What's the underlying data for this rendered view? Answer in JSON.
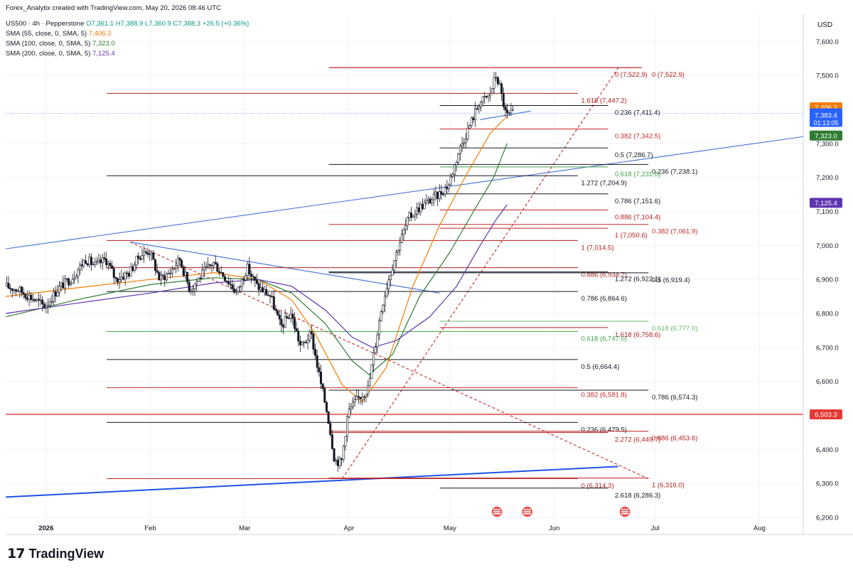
{
  "header": {
    "credit": "Forex_Analytix created with TradingView.com, May 20, 2026 08:46 UTC",
    "symbol": "US500 · 4h · Pepperstone",
    "ohlc": "O7,361.1 H7,388.9 L7,360.9 C7,388.3 +26.5 (+0.36%)",
    "indicators": [
      {
        "label": "SMA (55, close, 0, SMA, 5)",
        "value": "7,406.3"
      },
      {
        "label": "SMA (100, close, 0, SMA, 5)",
        "value": "7,323.0"
      },
      {
        "label": "SMA (200, close, 0, SMA, 5)",
        "value": "7,125.4"
      }
    ]
  },
  "brand": {
    "mark": "17",
    "name": "TradingView"
  },
  "colors": {
    "candle": "#131722",
    "sma55": "#f57c00",
    "sma100": "#2e7d32",
    "sma200": "#5e35b1",
    "trendline": "#3d6fd6",
    "fib_red": "#b71c1c",
    "fib_green": "#66bb6a",
    "fib_black": "#131722",
    "level_red": "#e53935"
  },
  "chart_data": {
    "type": "candlestick",
    "timeframe": "4h",
    "currency": "USD",
    "ylim": [
      6150,
      7680
    ],
    "xlim": [
      "2025-12-20",
      "2026-08-14"
    ],
    "yticks": [
      "6,200.0",
      "6,300.0",
      "6,400.0",
      "6,500.0",
      "6,600.0",
      "6,700.0",
      "6,800.0",
      "6,900.0",
      "7,000.0",
      "7,100.0",
      "7,200.0",
      "7,300.0",
      "7,400.0",
      "7,500.0",
      "7,600.0"
    ],
    "xticks": [
      {
        "date": "2026-01-01",
        "label": "2026"
      },
      {
        "date": "2026-02-01",
        "label": "Feb"
      },
      {
        "date": "2026-03-01",
        "label": "Mar"
      },
      {
        "date": "2026-04-01",
        "label": "Apr"
      },
      {
        "date": "2026-05-01",
        "label": "May"
      },
      {
        "date": "2026-06-01",
        "label": "Jun"
      },
      {
        "date": "2026-07-01",
        "label": "Jul"
      },
      {
        "date": "2026-08-01",
        "label": "Aug"
      }
    ],
    "price_path": [
      [
        "2025-12-20",
        6880
      ],
      [
        "2025-12-24",
        6870
      ],
      [
        "2025-12-29",
        6840
      ],
      [
        "2026-01-01",
        6820
      ],
      [
        "2026-01-05",
        6875
      ],
      [
        "2026-01-09",
        6905
      ],
      [
        "2026-01-13",
        6960
      ],
      [
        "2026-01-16",
        6940
      ],
      [
        "2026-01-19",
        6960
      ],
      [
        "2026-01-22",
        6900
      ],
      [
        "2026-01-26",
        6920
      ],
      [
        "2026-01-29",
        6970
      ],
      [
        "2026-02-01",
        6985
      ],
      [
        "2026-02-04",
        6900
      ],
      [
        "2026-02-07",
        6920
      ],
      [
        "2026-02-10",
        6960
      ],
      [
        "2026-02-13",
        6870
      ],
      [
        "2026-02-17",
        6920
      ],
      [
        "2026-02-20",
        6950
      ],
      [
        "2026-02-24",
        6900
      ],
      [
        "2026-02-27",
        6860
      ],
      [
        "2026-03-02",
        6935
      ],
      [
        "2026-03-05",
        6880
      ],
      [
        "2026-03-09",
        6850
      ],
      [
        "2026-03-12",
        6760
      ],
      [
        "2026-03-15",
        6800
      ],
      [
        "2026-03-18",
        6700
      ],
      [
        "2026-03-21",
        6740
      ],
      [
        "2026-03-24",
        6590
      ],
      [
        "2026-03-26",
        6500
      ],
      [
        "2026-03-28",
        6370
      ],
      [
        "2026-03-30",
        6360
      ],
      [
        "2026-04-01",
        6510
      ],
      [
        "2026-04-04",
        6550
      ],
      [
        "2026-04-07",
        6580
      ],
      [
        "2026-04-09",
        6700
      ],
      [
        "2026-04-11",
        6820
      ],
      [
        "2026-04-13",
        6900
      ],
      [
        "2026-04-16",
        7000
      ],
      [
        "2026-04-19",
        7080
      ],
      [
        "2026-04-22",
        7110
      ],
      [
        "2026-04-25",
        7130
      ],
      [
        "2026-04-28",
        7150
      ],
      [
        "2026-05-01",
        7180
      ],
      [
        "2026-05-04",
        7280
      ],
      [
        "2026-05-07",
        7350
      ],
      [
        "2026-05-10",
        7420
      ],
      [
        "2026-05-13",
        7440
      ],
      [
        "2026-05-15",
        7500
      ],
      [
        "2026-05-16",
        7470
      ],
      [
        "2026-05-18",
        7380
      ],
      [
        "2026-05-20",
        7388
      ]
    ],
    "candle_samples": 270,
    "last_price": "7,388.3",
    "countdown": "01:13:05",
    "series": [
      {
        "name": "SMA (55, close, 0, SMA, 5)",
        "color": "#f57c00",
        "last": "7,406.3",
        "path": [
          [
            "2025-12-20",
            6850
          ],
          [
            "2026-01-10",
            6875
          ],
          [
            "2026-02-01",
            6900
          ],
          [
            "2026-02-20",
            6920
          ],
          [
            "2026-03-05",
            6900
          ],
          [
            "2026-03-15",
            6840
          ],
          [
            "2026-03-22",
            6740
          ],
          [
            "2026-03-30",
            6590
          ],
          [
            "2026-04-05",
            6540
          ],
          [
            "2026-04-12",
            6640
          ],
          [
            "2026-04-20",
            6880
          ],
          [
            "2026-04-28",
            7060
          ],
          [
            "2026-05-06",
            7210
          ],
          [
            "2026-05-13",
            7330
          ],
          [
            "2026-05-18",
            7380
          ]
        ]
      },
      {
        "name": "SMA (100, close, 0, SMA, 5)",
        "color": "#2e7d32",
        "last": "7,323.0",
        "path": [
          [
            "2025-12-20",
            6790
          ],
          [
            "2026-01-10",
            6840
          ],
          [
            "2026-02-01",
            6885
          ],
          [
            "2026-02-20",
            6905
          ],
          [
            "2026-03-05",
            6900
          ],
          [
            "2026-03-15",
            6860
          ],
          [
            "2026-03-25",
            6770
          ],
          [
            "2026-04-02",
            6660
          ],
          [
            "2026-04-07",
            6620
          ],
          [
            "2026-04-14",
            6680
          ],
          [
            "2026-04-22",
            6850
          ],
          [
            "2026-05-01",
            6980
          ],
          [
            "2026-05-08",
            7100
          ],
          [
            "2026-05-14",
            7200
          ],
          [
            "2026-05-18",
            7300
          ]
        ]
      },
      {
        "name": "SMA (200, close, 0, SMA, 5)",
        "color": "#5e35b1",
        "last": "7,125.4",
        "path": [
          [
            "2025-12-20",
            6800
          ],
          [
            "2026-01-10",
            6830
          ],
          [
            "2026-02-01",
            6860
          ],
          [
            "2026-02-20",
            6890
          ],
          [
            "2026-03-05",
            6900
          ],
          [
            "2026-03-15",
            6880
          ],
          [
            "2026-03-25",
            6810
          ],
          [
            "2026-04-02",
            6730
          ],
          [
            "2026-04-08",
            6700
          ],
          [
            "2026-04-15",
            6720
          ],
          [
            "2026-04-25",
            6790
          ],
          [
            "2026-05-03",
            6880
          ],
          [
            "2026-05-10",
            7000
          ],
          [
            "2026-05-15",
            7080
          ],
          [
            "2026-05-18",
            7120
          ]
        ]
      }
    ],
    "trendlines": [
      {
        "style": "solid",
        "color": "#3d6fd6",
        "points": [
          [
            "2025-12-20",
            6990
          ],
          [
            "2026-08-14",
            7320
          ]
        ]
      },
      {
        "style": "solid",
        "color": "#3d6fd6",
        "points": [
          [
            "2026-01-26",
            7010
          ],
          [
            "2026-04-28",
            6860
          ]
        ]
      },
      {
        "style": "solid",
        "color": "#1e53e5",
        "points": [
          [
            "2025-12-20",
            6260
          ],
          [
            "2026-06-20",
            6350
          ]
        ]
      },
      {
        "style": "solid",
        "color": "#3d6fd6",
        "points": [
          [
            "2026-05-10",
            7370
          ],
          [
            "2026-05-25",
            7395
          ]
        ]
      },
      {
        "style": "dashed",
        "color": "#c62828",
        "points": [
          [
            "2026-03-30",
            6314
          ],
          [
            "2026-06-20",
            7522
          ]
        ]
      },
      {
        "style": "dashed",
        "color": "#c62828",
        "points": [
          [
            "2026-01-26",
            7010
          ],
          [
            "2026-06-29",
            6314
          ]
        ]
      }
    ],
    "fib_levels": [
      {
        "price": 7522.9,
        "from": "2026-03-26",
        "to": "2026-06-27",
        "color": "#b71c1c",
        "label": "0 (7,522.9)",
        "label_at": "2026-06-19"
      },
      {
        "price": 7522.9,
        "from": "2026-03-26",
        "to": "2026-06-27",
        "color": "#b71c1c",
        "label": "0 (7,522.9)",
        "label_at": "2026-06-30"
      },
      {
        "price": 7447.2,
        "from": "2026-01-19",
        "to": "2026-06-08",
        "color": "#b71c1c",
        "label": "1.618 (7,447.2)",
        "label_at": "2026-06-09"
      },
      {
        "price": 7411.4,
        "from": "2026-04-28",
        "to": "2026-06-17",
        "color": "#131722",
        "label": "0.236 (7,411.4)",
        "label_at": "2026-06-19"
      },
      {
        "price": 7342.5,
        "from": "2026-04-28",
        "to": "2026-06-17",
        "color": "#c62828",
        "label": "0.382 (7,342.5)",
        "label_at": "2026-06-19"
      },
      {
        "price": 7286.7,
        "from": "2026-04-28",
        "to": "2026-06-17",
        "color": "#131722",
        "label": "0.5 (7,286.7)",
        "label_at": "2026-06-19"
      },
      {
        "price": 7238.1,
        "from": "2026-03-26",
        "to": "2026-06-29",
        "color": "#131722",
        "label": "0.236 (7,238.1)",
        "label_at": "2026-06-30"
      },
      {
        "price": 7231.0,
        "from": "2026-04-28",
        "to": "2026-06-17",
        "color": "#43a047",
        "label": "0.618 (7,231.0)",
        "label_at": "2026-06-19"
      },
      {
        "price": 7204.9,
        "from": "2026-01-19",
        "to": "2026-06-08",
        "color": "#131722",
        "label": "1.272 (7,204.9)",
        "label_at": "2026-06-09"
      },
      {
        "price": 7151.6,
        "from": "2026-04-28",
        "to": "2026-06-17",
        "color": "#131722",
        "label": "0.786 (7,151.6)",
        "label_at": "2026-06-19"
      },
      {
        "price": 7104.4,
        "from": "2026-04-28",
        "to": "2026-06-17",
        "color": "#b71c1c",
        "label": "0.886 (7,104.4)",
        "label_at": "2026-06-19"
      },
      {
        "price": 7061.9,
        "from": "2026-03-26",
        "to": "2026-06-29",
        "color": "#c62828",
        "label": "0.382 (7,061.9)",
        "label_at": "2026-06-30"
      },
      {
        "price": 7050.6,
        "from": "2026-04-28",
        "to": "2026-06-17",
        "color": "#b71c1c",
        "label": "1 (7,050.6)",
        "label_at": "2026-06-19"
      },
      {
        "price": 7014.5,
        "from": "2026-01-19",
        "to": "2026-06-08",
        "color": "#b71c1c",
        "label": "1 (7,014.5)",
        "label_at": "2026-06-09"
      },
      {
        "price": 6934.7,
        "from": "2026-01-19",
        "to": "2026-06-08",
        "color": "#b71c1c",
        "label": "0.886 (6,934.7)",
        "label_at": "2026-06-09"
      },
      {
        "price": 6922.1,
        "from": "2026-03-26",
        "to": "2026-06-17",
        "color": "#131722",
        "label": "1.272 (6,922.1)",
        "label_at": "2026-06-19"
      },
      {
        "price": 6919.4,
        "from": "2026-03-26",
        "to": "2026-06-29",
        "color": "#131722",
        "label": "0.5 (6,919.4)",
        "label_at": "2026-06-30"
      },
      {
        "price": 6864.6,
        "from": "2026-01-19",
        "to": "2026-06-08",
        "color": "#131722",
        "label": "0.786 (6,864.6)",
        "label_at": "2026-06-09"
      },
      {
        "price": 6777.0,
        "from": "2026-04-28",
        "to": "2026-06-29",
        "color": "#66bb6a",
        "label": "0.618 (6,777.0)",
        "label_at": "2026-06-30"
      },
      {
        "price": 6758.6,
        "from": "2026-04-28",
        "to": "2026-06-17",
        "color": "#b71c1c",
        "label": "1.618 (6,758.6)",
        "label_at": "2026-06-19"
      },
      {
        "price": 6747.0,
        "from": "2026-01-19",
        "to": "2026-06-08",
        "color": "#43a047",
        "label": "0.618 (6,747.0)",
        "label_at": "2026-06-09"
      },
      {
        "price": 6664.4,
        "from": "2026-01-19",
        "to": "2026-06-08",
        "color": "#131722",
        "label": "0.5 (6,664.4)",
        "label_at": "2026-06-09"
      },
      {
        "price": 6581.8,
        "from": "2026-01-19",
        "to": "2026-06-08",
        "color": "#c62828",
        "label": "0.382 (6,581.8)",
        "label_at": "2026-06-09"
      },
      {
        "price": 6574.3,
        "from": "2026-03-26",
        "to": "2026-06-29",
        "color": "#131722",
        "label": "0.786 (6,574.3)",
        "label_at": "2026-06-30"
      },
      {
        "price": 6479.5,
        "from": "2026-01-19",
        "to": "2026-06-08",
        "color": "#131722",
        "label": "0.236 (6,479.5)",
        "label_at": "2026-06-09"
      },
      {
        "price": 6453.6,
        "from": "2026-03-26",
        "to": "2026-06-29",
        "color": "#b71c1c",
        "label": "0.886 (6,453.6)",
        "label_at": "2026-06-30"
      },
      {
        "price": 6449.7,
        "from": "2026-03-26",
        "to": "2026-06-17",
        "color": "#b71c1c",
        "label": "2.272 (6,449.7)",
        "label_at": "2026-06-19"
      },
      {
        "price": 6314.3,
        "from": "2026-01-19",
        "to": "2026-06-08",
        "color": "#b71c1c",
        "label": "0 (6,314.3)",
        "label_at": "2026-06-09"
      },
      {
        "price": 6316.0,
        "from": "2026-03-26",
        "to": "2026-06-29",
        "color": "#b71c1c",
        "label": "1 (6,316.0)",
        "label_at": "2026-06-30"
      },
      {
        "price": 6286.3,
        "from": "2026-04-28",
        "to": "2026-06-17",
        "color": "#131722",
        "label": "2.618 (6,286.3)",
        "label_at": "2026-06-19"
      }
    ],
    "horizontal_levels": [
      {
        "price": 6503.3,
        "label": "6,503.3",
        "color": "#e53935"
      }
    ],
    "price_labels": [
      {
        "price": 7406.3,
        "label": "7,406.3",
        "color": "#f57c00"
      },
      {
        "price": 7388.3,
        "label": "7,388.3",
        "color": "#2962ff"
      },
      {
        "price": 7383.4,
        "label": "7,383.4",
        "color": "#2962ff"
      },
      {
        "price": 7323.0,
        "label": "7,323.0",
        "color": "#2e7d32"
      },
      {
        "price": 7125.4,
        "label": "7,125.4",
        "color": "#5e35b1"
      },
      {
        "price": 6503.3,
        "label": "6,503.3",
        "color": "#e53935"
      }
    ],
    "event_markers": [
      "2026-05-15",
      "2026-05-24",
      "2026-06-22"
    ]
  }
}
